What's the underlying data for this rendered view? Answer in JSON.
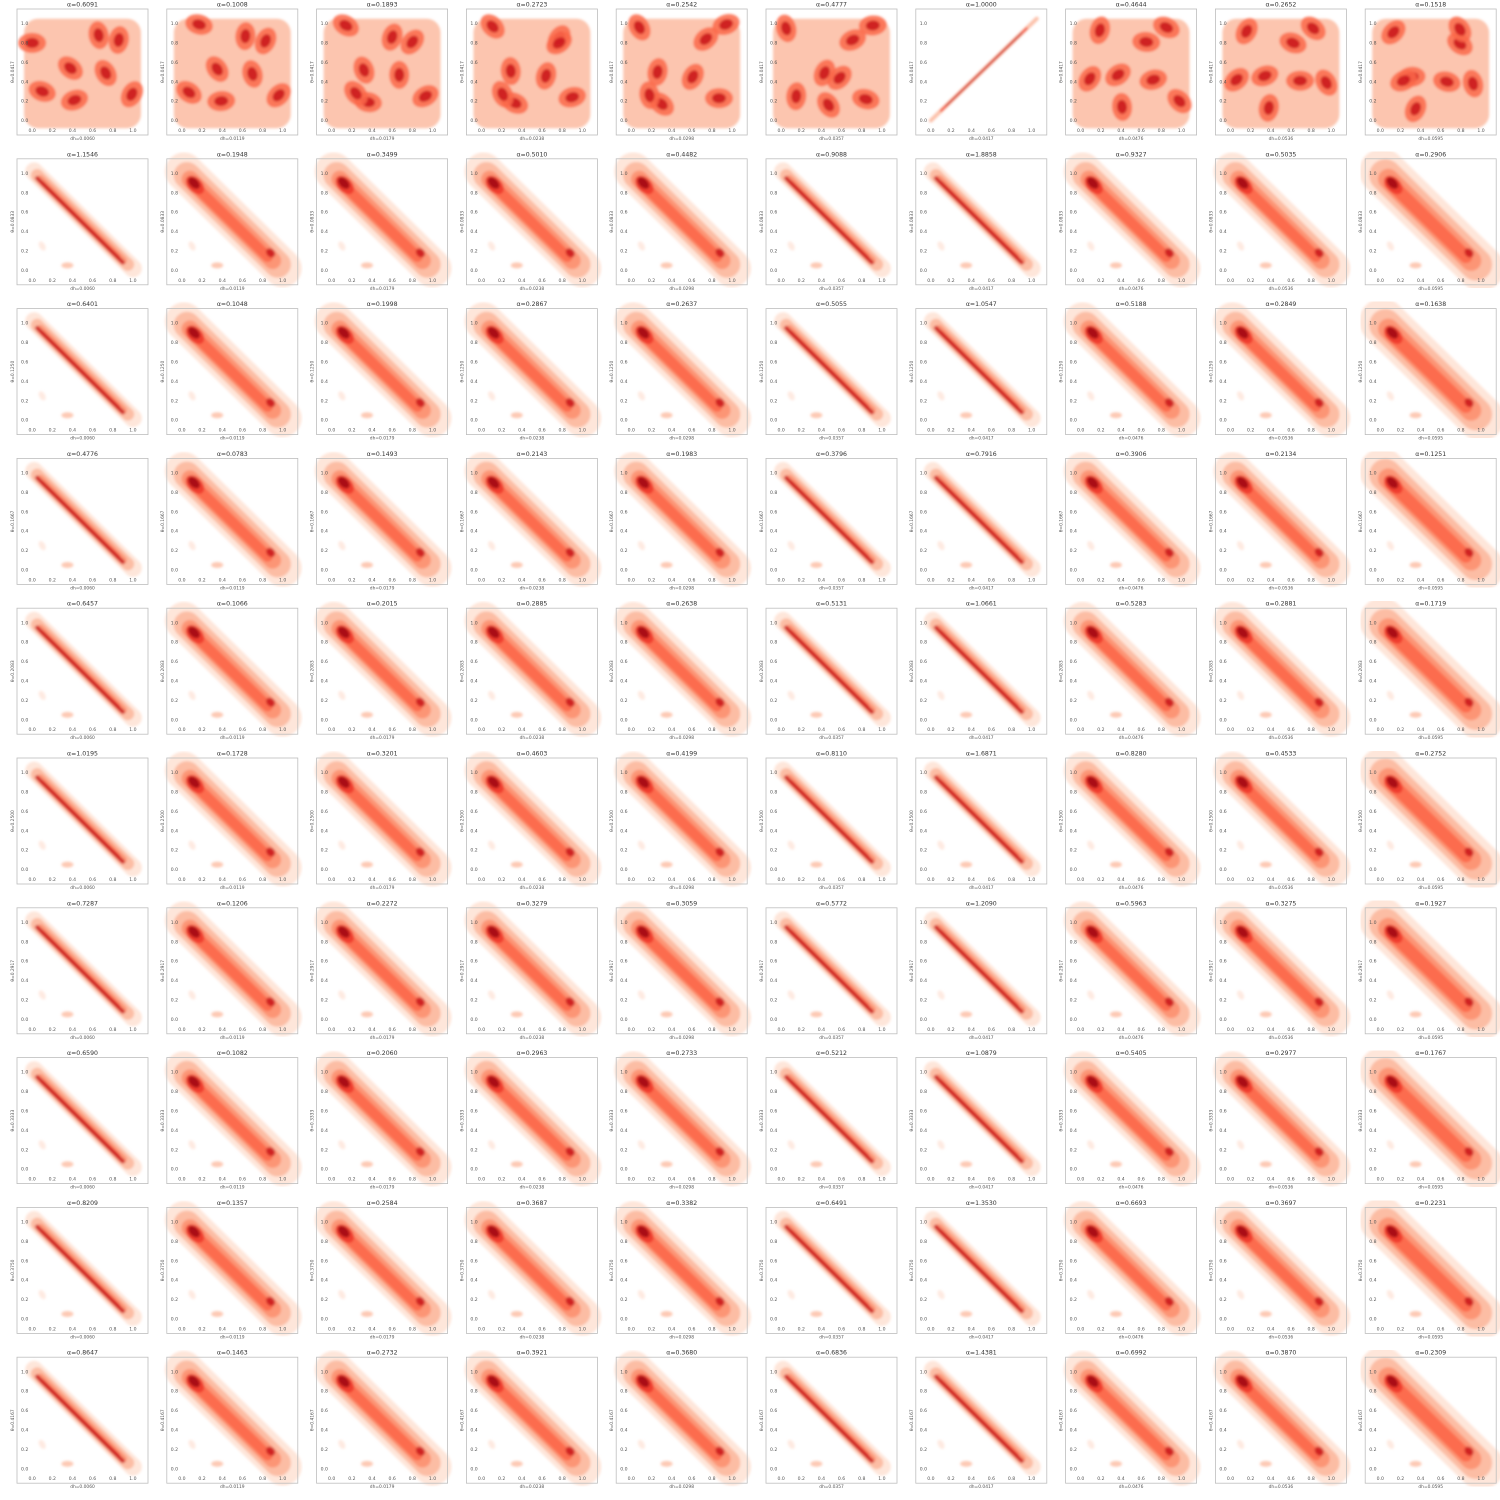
{
  "chart_data": {
    "type": "heatmap",
    "description_kind": "grid of 2D kernel density contour plots",
    "colormap": "Reds",
    "grid": {
      "rows": 10,
      "cols": 10
    },
    "x_ticks": [
      "0.0",
      "0.2",
      "0.4",
      "0.6",
      "0.8",
      "1.0"
    ],
    "y_ticks": [
      "0.0",
      "0.2",
      "0.4",
      "0.6",
      "0.8",
      "1.0"
    ],
    "xlim": [
      -0.15,
      1.15
    ],
    "ylim": [
      -0.15,
      1.15
    ],
    "col_xlabels": [
      "dh=0.0060",
      "dh=0.0119",
      "dh=0.0179",
      "dh=0.0238",
      "dh=0.0298",
      "dh=0.0357",
      "dh=0.0417",
      "dh=0.0476",
      "dh=0.0536",
      "dh=0.0595"
    ],
    "row_ylabels": [
      "θ=0.0417",
      "θ=0.0833",
      "θ=0.1250",
      "θ=0.1667",
      "θ=0.2083",
      "θ=0.2500",
      "θ=0.2917",
      "θ=0.3333",
      "θ=0.3750",
      "θ=0.4167"
    ],
    "titles": [
      [
        "α=0.6091",
        "α=0.1008",
        "α=0.1893",
        "α=0.2723",
        "α=0.2542",
        "α=0.4777",
        "α=1.0000",
        "α=0.4644",
        "α=0.2652",
        "α=0.1518"
      ],
      [
        "α=1.1546",
        "α=0.1948",
        "α=0.3499",
        "α=0.5010",
        "α=0.4482",
        "α=0.9088",
        "α=1.8858",
        "α=0.9327",
        "α=0.5035",
        "α=0.2906"
      ],
      [
        "α=0.6401",
        "α=0.1048",
        "α=0.1998",
        "α=0.2867",
        "α=0.2637",
        "α=0.5055",
        "α=1.0547",
        "α=0.5188",
        "α=0.2849",
        "α=0.1638"
      ],
      [
        "α=0.4776",
        "α=0.0783",
        "α=0.1493",
        "α=0.2143",
        "α=0.1983",
        "α=0.3796",
        "α=0.7916",
        "α=0.3906",
        "α=0.2134",
        "α=0.1251"
      ],
      [
        "α=0.6457",
        "α=0.1066",
        "α=0.2015",
        "α=0.2885",
        "α=0.2638",
        "α=0.5131",
        "α=1.0661",
        "α=0.5283",
        "α=0.2881",
        "α=0.1719"
      ],
      [
        "α=1.0195",
        "α=0.1728",
        "α=0.3201",
        "α=0.4603",
        "α=0.4199",
        "α=0.8110",
        "α=1.6871",
        "α=0.8280",
        "α=0.4533",
        "α=0.2752"
      ],
      [
        "α=0.7287",
        "α=0.1206",
        "α=0.2272",
        "α=0.3279",
        "α=0.3059",
        "α=0.5772",
        "α=1.2090",
        "α=0.5963",
        "α=0.3275",
        "α=0.1927"
      ],
      [
        "α=0.6590",
        "α=0.1082",
        "α=0.2060",
        "α=0.2963",
        "α=0.2733",
        "α=0.5212",
        "α=1.0879",
        "α=0.5405",
        "α=0.2977",
        "α=0.1767"
      ],
      [
        "α=0.8209",
        "α=0.1357",
        "α=0.2584",
        "α=0.3687",
        "α=0.3382",
        "α=0.6491",
        "α=1.3530",
        "α=0.6693",
        "α=0.3697",
        "α=0.2231"
      ],
      [
        "α=0.8647",
        "α=0.1463",
        "α=0.2732",
        "α=0.3921",
        "α=0.3680",
        "α=0.6836",
        "α=1.4381",
        "α=0.6992",
        "α=0.3870",
        "α=0.2309"
      ]
    ],
    "colors": {
      "levels": [
        "#fee5d9",
        "#fcbba1",
        "#fc9272",
        "#fb6a4a",
        "#ef3b2c",
        "#cb181d",
        "#a50f15"
      ],
      "frame": "#bdbdbd",
      "text": "#333333"
    }
  }
}
